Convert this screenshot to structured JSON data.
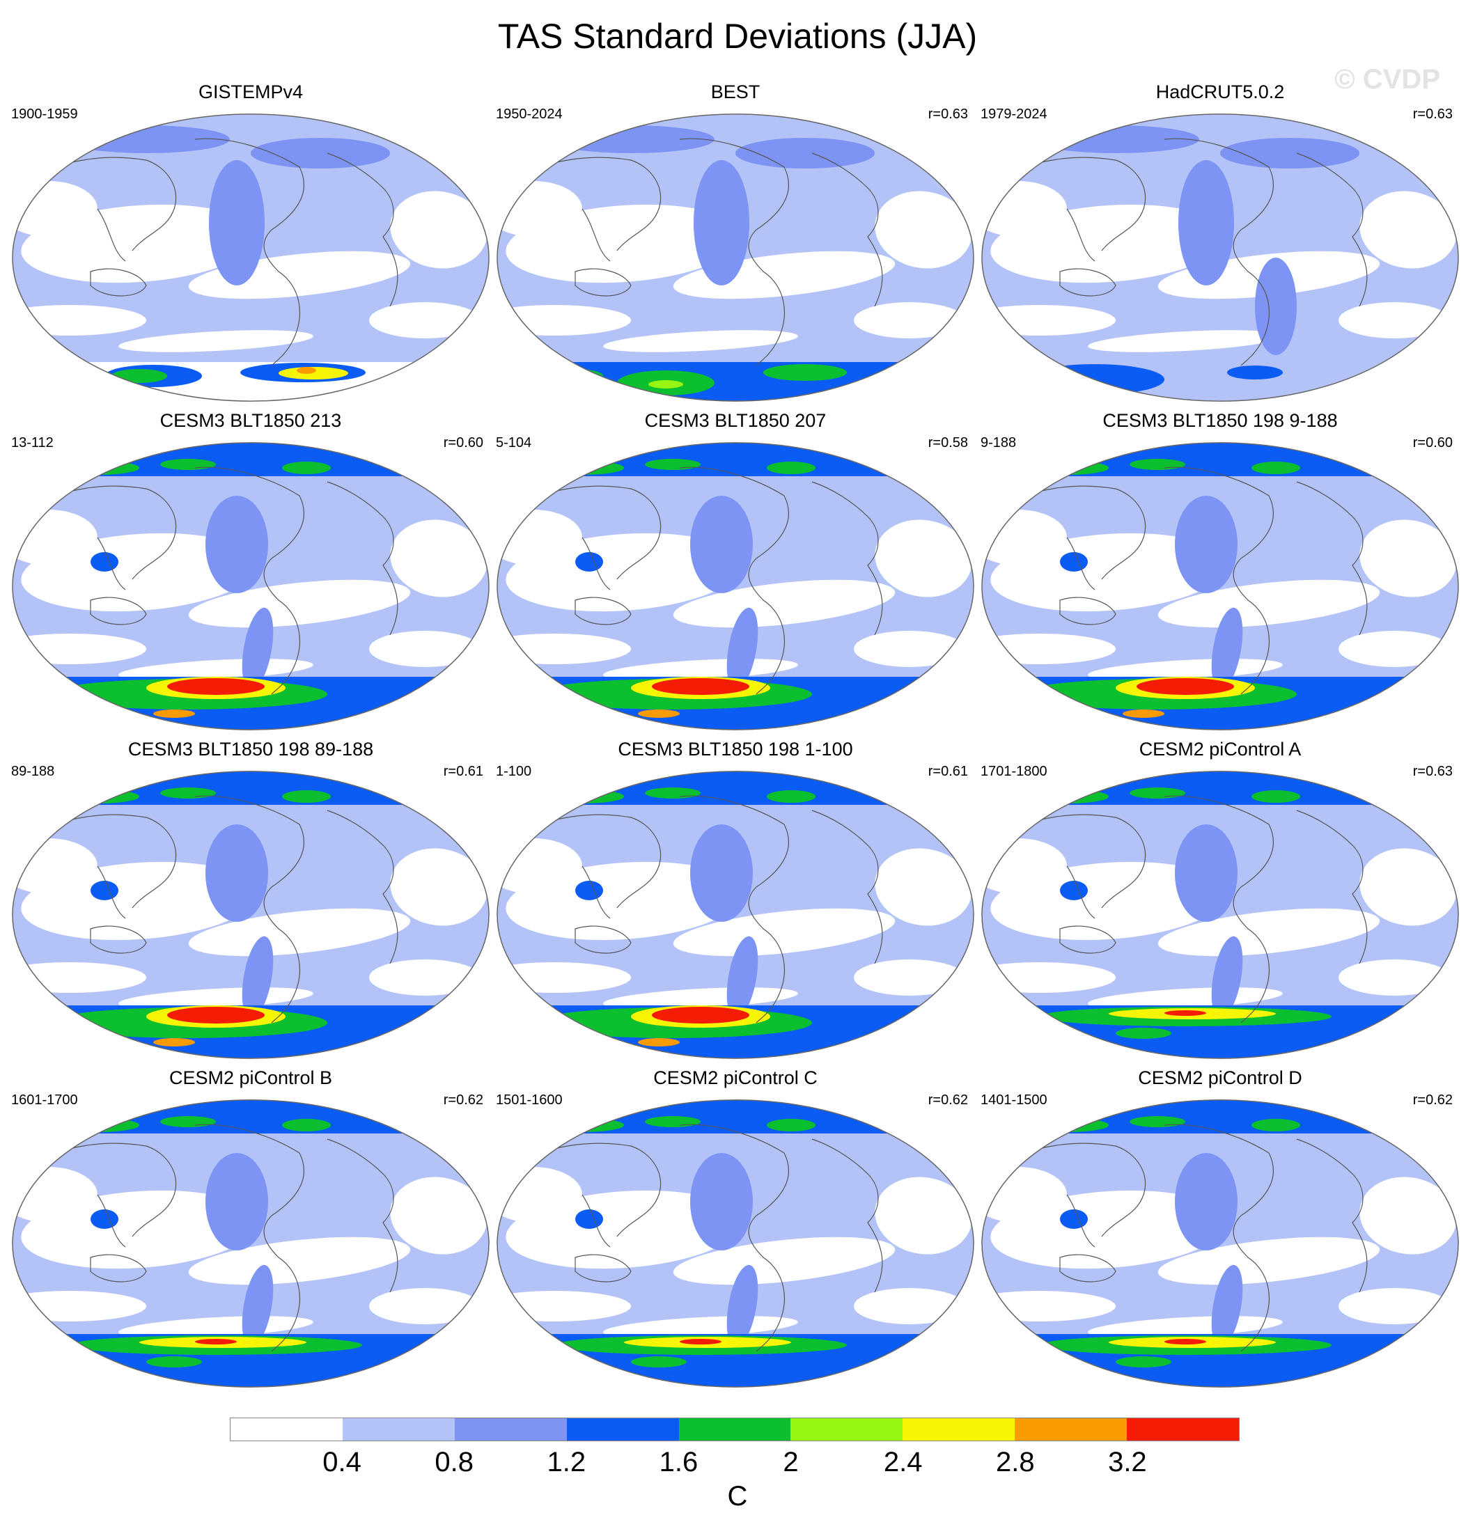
{
  "title": "TAS Standard Deviations (JJA)",
  "watermark": "© CVDP",
  "panels": [
    {
      "title": "GISTEMPv4",
      "years": "1900-1959",
      "corr": "",
      "variant": "gistemp"
    },
    {
      "title": "BEST",
      "years": "1950-2024",
      "corr": "r=0.63",
      "variant": "best"
    },
    {
      "title": "HadCRUT5.0.2",
      "years": "1979-2024",
      "corr": "r=0.63",
      "variant": "hadcrut"
    },
    {
      "title": "CESM3 BLT1850 213",
      "years": "13-112",
      "corr": "r=0.60",
      "variant": "cesm3"
    },
    {
      "title": "CESM3 BLT1850 207",
      "years": "5-104",
      "corr": "r=0.58",
      "variant": "cesm3"
    },
    {
      "title": "CESM3 BLT1850 198 9-188",
      "years": "9-188",
      "corr": "r=0.60",
      "variant": "cesm3"
    },
    {
      "title": "CESM3 BLT1850 198 89-188",
      "years": "89-188",
      "corr": "r=0.61",
      "variant": "cesm3"
    },
    {
      "title": "CESM3 BLT1850 198 1-100",
      "years": "1-100",
      "corr": "r=0.61",
      "variant": "cesm3"
    },
    {
      "title": "CESM2 piControl A",
      "years": "1701-1800",
      "corr": "r=0.63",
      "variant": "cesm2"
    },
    {
      "title": "CESM2 piControl B",
      "years": "1601-1700",
      "corr": "r=0.62",
      "variant": "cesm2"
    },
    {
      "title": "CESM2 piControl C",
      "years": "1501-1600",
      "corr": "r=0.62",
      "variant": "cesm2"
    },
    {
      "title": "CESM2 piControl D",
      "years": "1401-1500",
      "corr": "r=0.62",
      "variant": "cesm2"
    }
  ],
  "colorbar": {
    "colors": [
      "#ffffff",
      "#b4c3f7",
      "#7d94f4",
      "#0a5cf5",
      "#0bbf2f",
      "#96f512",
      "#f7f502",
      "#fa9b02",
      "#f51c06"
    ],
    "ticks": [
      "0.4",
      "0.8",
      "1.2",
      "1.6",
      "2",
      "2.4",
      "2.8",
      "3.2"
    ],
    "unit": "C"
  }
}
